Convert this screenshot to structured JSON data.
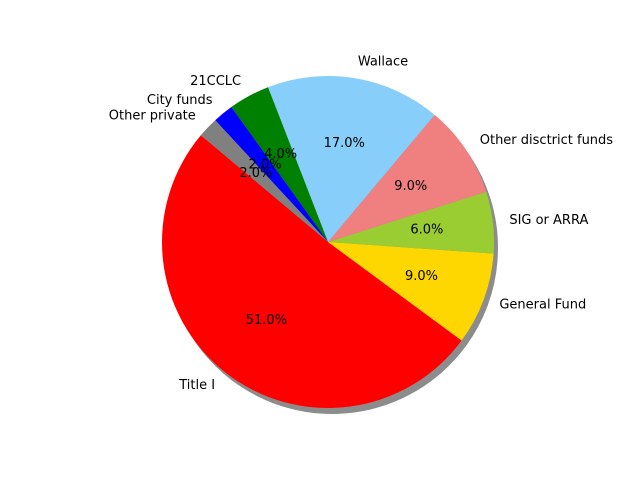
{
  "chart_data": {
    "type": "pie",
    "title": "",
    "shadow": true,
    "start_angle_deg": 140,
    "direction": "counterclockwise",
    "slices": [
      {
        "label": "Title I",
        "value": 51.0,
        "pct_label": "51.0%",
        "color": "#ff0000"
      },
      {
        "label": "General Fund",
        "value": 9.0,
        "pct_label": "9.0%",
        "color": "#ffd700"
      },
      {
        "label": "SIG or ARRA",
        "value": 6.0,
        "pct_label": "6.0%",
        "color": "#9acd32"
      },
      {
        "label": "Other disctrict funds",
        "value": 9.0,
        "pct_label": "9.0%",
        "color": "#f08080"
      },
      {
        "label": "Wallace",
        "value": 17.0,
        "pct_label": "17.0%",
        "color": "#87cefa"
      },
      {
        "label": "21CCLC",
        "value": 4.0,
        "pct_label": "4.0%",
        "color": "#008000"
      },
      {
        "label": "City funds",
        "value": 2.0,
        "pct_label": "2.0%",
        "color": "#0000ff"
      },
      {
        "label": "Other private",
        "value": 2.0,
        "pct_label": "2.0%",
        "color": "#808080"
      }
    ]
  }
}
